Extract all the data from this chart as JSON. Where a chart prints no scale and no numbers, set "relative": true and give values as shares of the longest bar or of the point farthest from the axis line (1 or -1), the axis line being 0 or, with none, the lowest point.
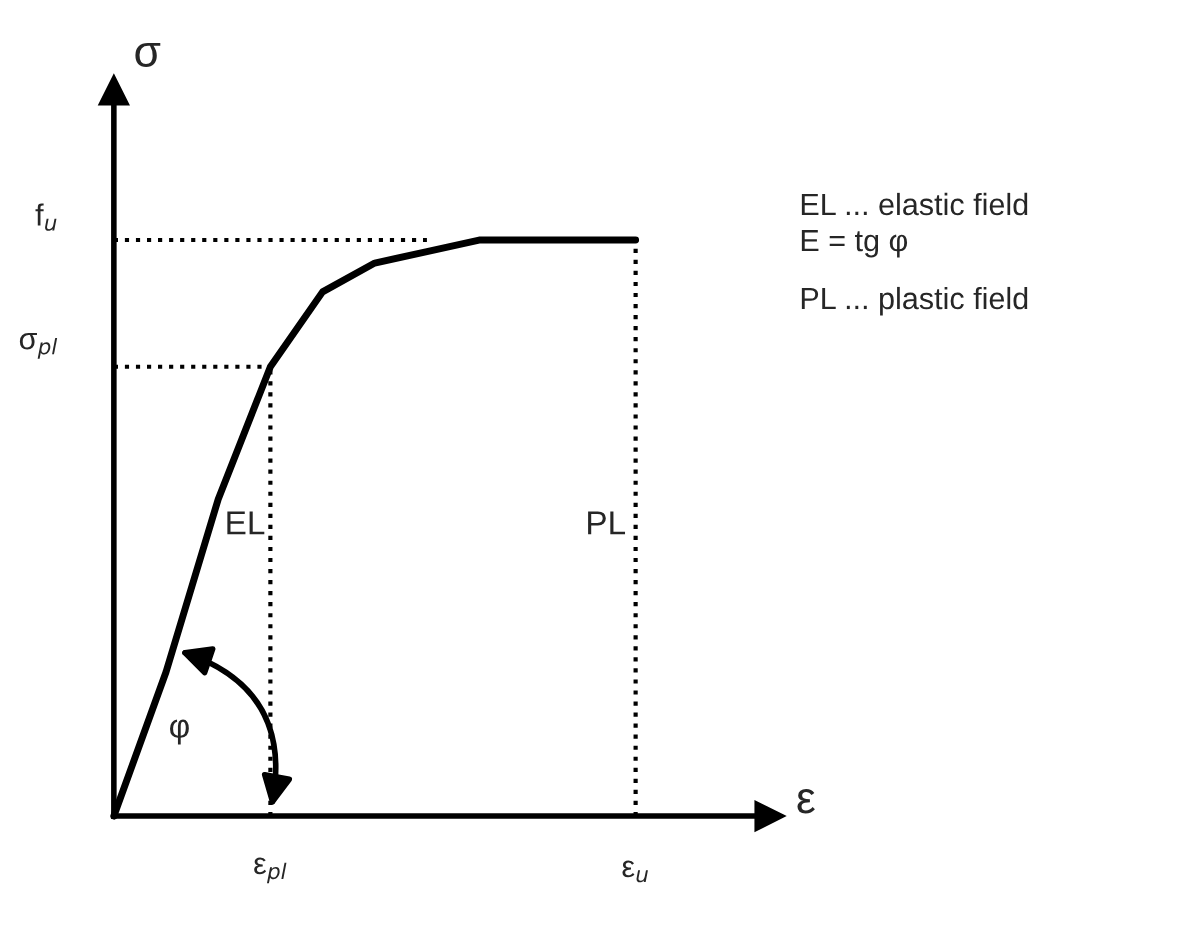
{
  "chart_data": {
    "type": "line",
    "relative": true,
    "xlabel": "ε",
    "ylabel": "σ",
    "marker": "none",
    "line_style": "solid",
    "color": "#000000",
    "categories": [
      null,
      null,
      null,
      "ε$_{pl}$",
      null,
      null,
      null,
      null,
      null,
      null,
      "ε$_{u}$"
    ],
    "values": [
      0,
      0.25,
      0.55,
      0.78,
      0.91,
      0.96,
      0.98,
      1,
      1,
      1,
      1
    ],
    "ref_lines": [
      {
        "axis": "y",
        "value": 1,
        "label": "f$_{u}$",
        "line_style": "dotted",
        "color": "#000000"
      },
      {
        "axis": "y",
        "value": 0.78,
        "label": "σ$_{pl}$",
        "line_style": "dotted",
        "color": "#000000"
      }
    ],
    "annotations": [
      "EL",
      "PL",
      "φ",
      "EL ... elastic field",
      "E = tg φ",
      "PL ... plastic field"
    ]
  }
}
